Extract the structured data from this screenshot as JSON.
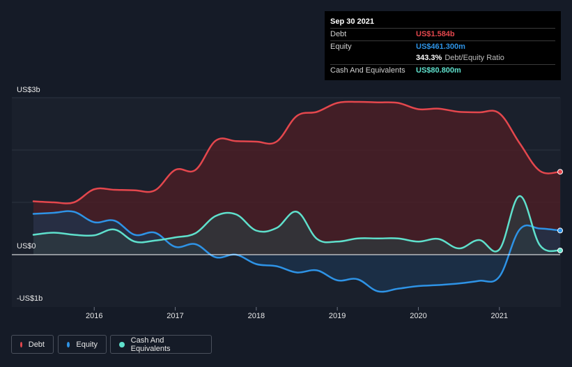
{
  "tooltip": {
    "date": "Sep 30 2021",
    "debt_label": "Debt",
    "debt_value": "US$1.584b",
    "equity_label": "Equity",
    "equity_value": "US$461.300m",
    "ratio_value": "343.3%",
    "ratio_label": "Debt/Equity Ratio",
    "cash_label": "Cash And Equivalents",
    "cash_value": "US$80.800m"
  },
  "legend": {
    "debt": "Debt",
    "equity": "Equity",
    "cash": "Cash And Equivalents"
  },
  "colors": {
    "debt": "#e4474d",
    "equity": "#2e93e6",
    "cash": "#5fe0cc",
    "debt_fill": "#4a1f26",
    "equity_fill": "#1d3550",
    "cash_fill": "#2e3b3f"
  },
  "chart_data": {
    "type": "area",
    "title": "",
    "ylabel": "",
    "xlabel": "",
    "ylim": [
      -1.0,
      3.0
    ],
    "y_ticks": [
      {
        "value": 3.0,
        "label": "US$3b"
      },
      {
        "value": 0.0,
        "label": "US$0"
      },
      {
        "value": -1.0,
        "label": "-US$1b"
      }
    ],
    "x_ticks": [
      {
        "value": 2016,
        "label": "2016"
      },
      {
        "value": 2017,
        "label": "2017"
      },
      {
        "value": 2018,
        "label": "2018"
      },
      {
        "value": 2019,
        "label": "2019"
      },
      {
        "value": 2020,
        "label": "2020"
      },
      {
        "value": 2021,
        "label": "2021"
      }
    ],
    "xlim": [
      2015.25,
      2021.75
    ],
    "gridlines": [
      2.0,
      1.0
    ],
    "x": [
      2015.25,
      2015.5,
      2015.75,
      2016.0,
      2016.25,
      2016.5,
      2016.75,
      2017.0,
      2017.25,
      2017.5,
      2017.75,
      2018.0,
      2018.25,
      2018.5,
      2018.75,
      2019.0,
      2019.25,
      2019.5,
      2019.75,
      2020.0,
      2020.25,
      2020.5,
      2020.75,
      2021.0,
      2021.25,
      2021.5,
      2021.75
    ],
    "series": [
      {
        "name": "Debt",
        "values": [
          1.02,
          1.0,
          1.0,
          1.25,
          1.24,
          1.23,
          1.23,
          1.62,
          1.62,
          2.18,
          2.17,
          2.16,
          2.16,
          2.65,
          2.73,
          2.9,
          2.92,
          2.91,
          2.9,
          2.78,
          2.79,
          2.73,
          2.72,
          2.7,
          2.13,
          1.6,
          1.584
        ]
      },
      {
        "name": "Equity",
        "values": [
          0.78,
          0.8,
          0.82,
          0.62,
          0.65,
          0.38,
          0.42,
          0.15,
          0.2,
          -0.05,
          0.0,
          -0.18,
          -0.22,
          -0.34,
          -0.3,
          -0.49,
          -0.47,
          -0.7,
          -0.65,
          -0.6,
          -0.58,
          -0.55,
          -0.5,
          -0.42,
          0.48,
          0.5,
          0.4613
        ]
      },
      {
        "name": "Cash And Equivalents",
        "values": [
          0.38,
          0.42,
          0.38,
          0.37,
          0.48,
          0.25,
          0.27,
          0.33,
          0.41,
          0.74,
          0.77,
          0.46,
          0.51,
          0.82,
          0.3,
          0.25,
          0.31,
          0.31,
          0.31,
          0.25,
          0.3,
          0.12,
          0.28,
          0.1,
          1.12,
          0.18,
          0.0808
        ]
      }
    ]
  }
}
